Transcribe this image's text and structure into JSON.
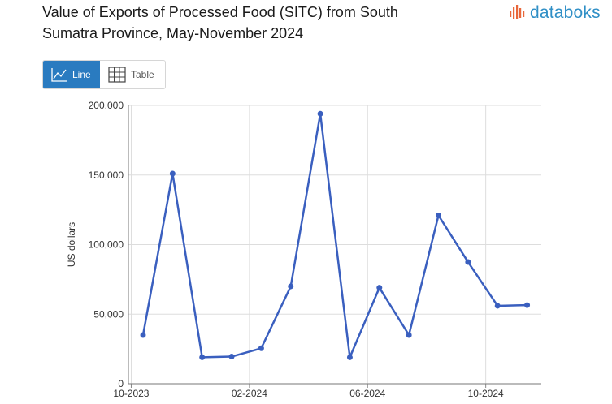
{
  "header": {
    "title_line1": "Value of Exports of Processed Food (SITC) from South",
    "title_line2": "Sumatra Province, May-November 2024",
    "brand": "databoks",
    "brand_color": "#2f8fc6"
  },
  "view_toggle": {
    "line_label": "Line",
    "table_label": "Table",
    "active": "line",
    "accent": "#2a7bc0"
  },
  "chart_data": {
    "type": "line",
    "ylabel": "US dollars",
    "ylim": [
      0,
      200000
    ],
    "yticks": [
      {
        "value": 0,
        "label": "0"
      },
      {
        "value": 50000,
        "label": "50,000"
      },
      {
        "value": 100000,
        "label": "100,000"
      },
      {
        "value": 150000,
        "label": "150,000"
      },
      {
        "value": 200000,
        "label": "200,000"
      }
    ],
    "xticks": [
      {
        "index": -0.4,
        "label": "10-2023"
      },
      {
        "index": 3.6,
        "label": "02-2024"
      },
      {
        "index": 7.6,
        "label": "06-2024"
      },
      {
        "index": 11.6,
        "label": "10-2024"
      }
    ],
    "xrange": [
      -0.4,
      13.3
    ],
    "grid": true,
    "line_color": "#3a5fbf",
    "series": [
      {
        "values": [
          35000,
          151000,
          19000,
          19500,
          25500,
          70000,
          194000,
          19000,
          69000,
          35000,
          121000,
          87500,
          56000,
          56500
        ]
      }
    ]
  }
}
